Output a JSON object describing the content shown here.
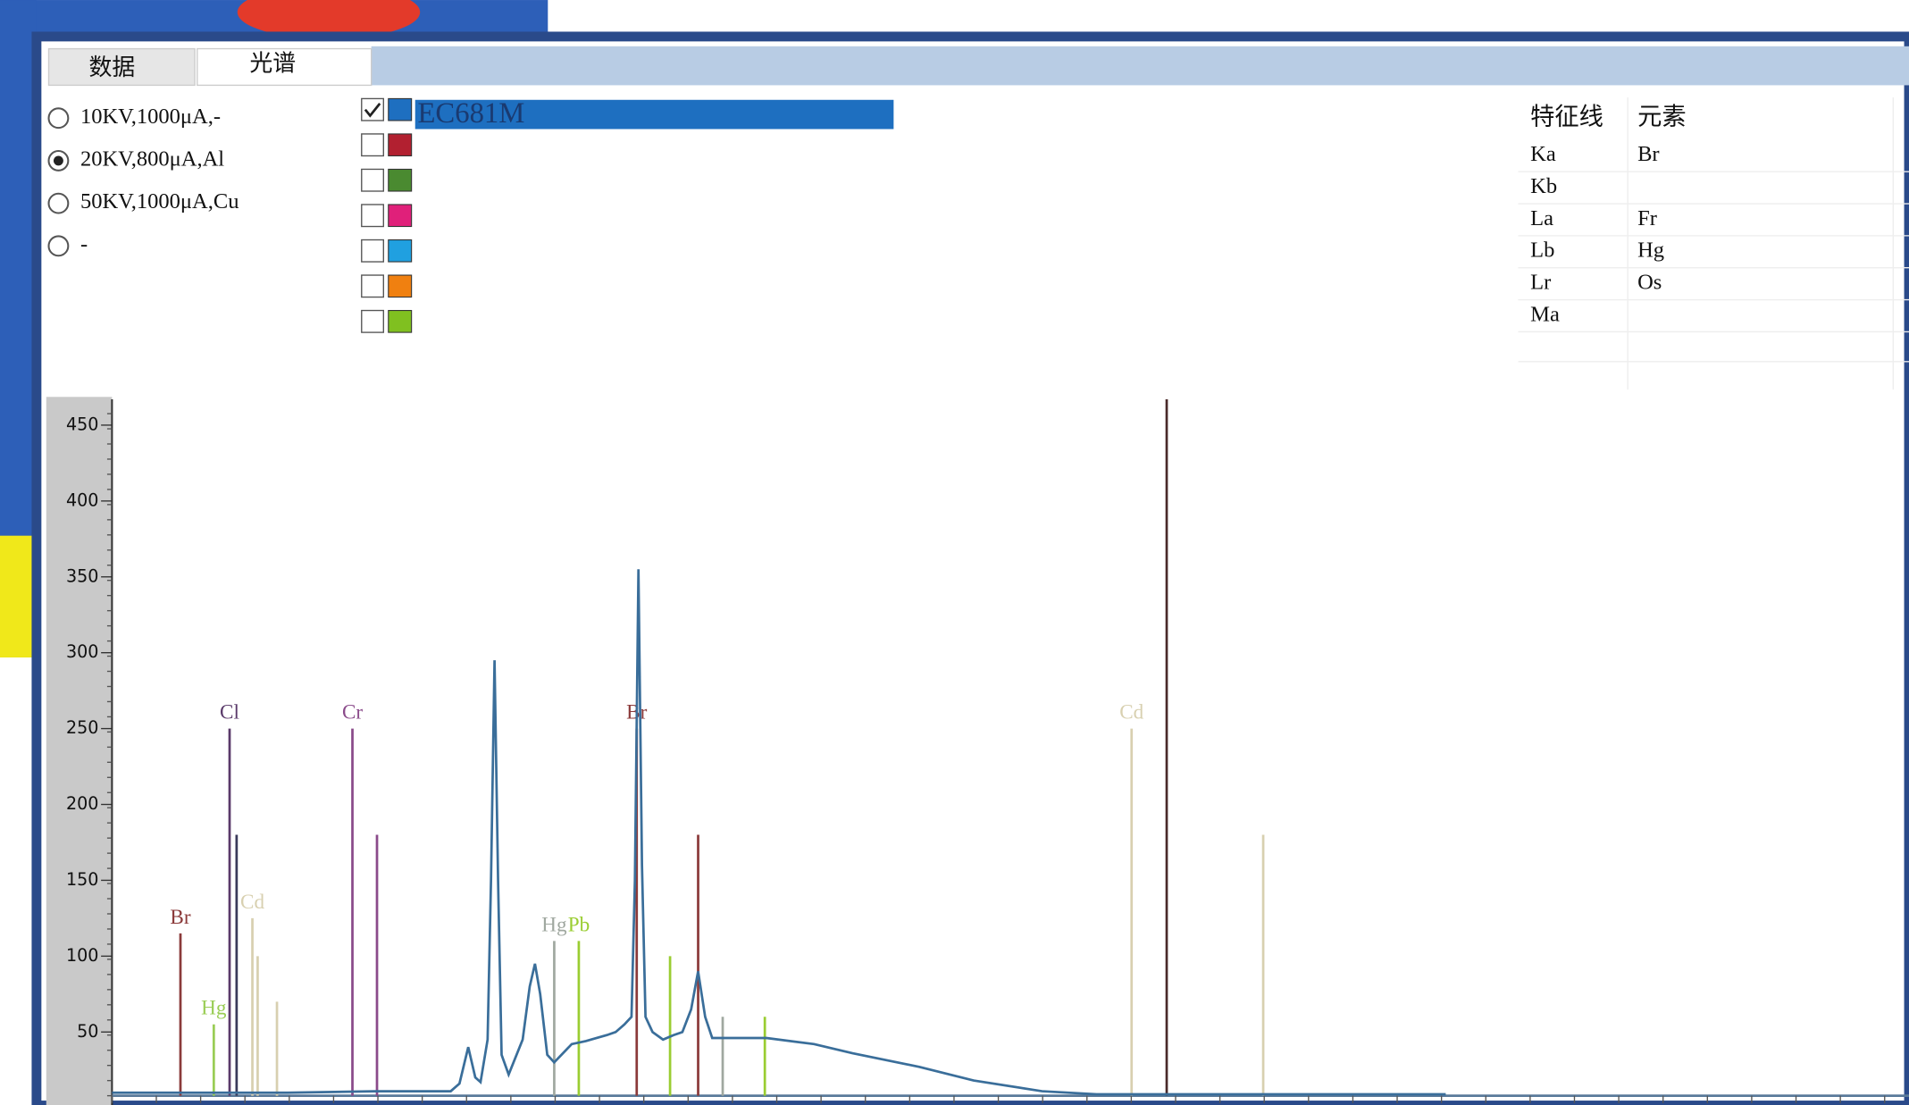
{
  "tabs": [
    "数据",
    "光谱"
  ],
  "active_tab": 1,
  "modes": {
    "options": [
      "10KV,1000μA,-",
      "20KV,800μA,Al",
      "50KV,1000μA,Cu",
      "-"
    ],
    "selected": 1
  },
  "samples": [
    {
      "name": "EC681M",
      "color": "#1e6fc0",
      "checked": true
    },
    {
      "color": "#b22030",
      "checked": false
    },
    {
      "color": "#4a8a30",
      "checked": false
    },
    {
      "color": "#e0207a",
      "checked": false
    },
    {
      "color": "#20a0e0",
      "checked": false
    },
    {
      "color": "#f08010",
      "checked": false
    },
    {
      "color": "#80c020",
      "checked": false
    }
  ],
  "lines_table": {
    "headers": [
      "特征线",
      "元素"
    ],
    "rows": [
      [
        "Ka",
        "Br"
      ],
      [
        "Kb"
      ],
      [
        "La",
        "Fr"
      ],
      [
        "Lb",
        "Hg"
      ],
      [
        "Lr",
        "Os"
      ],
      [
        "Ma"
      ]
    ]
  },
  "chart_data": {
    "type": "line",
    "x": [
      0,
      100,
      150,
      193,
      198,
      203,
      207,
      210,
      214,
      216,
      218,
      220,
      222,
      226,
      234,
      238,
      241,
      244,
      248,
      252,
      262,
      270,
      276,
      282,
      287,
      292,
      296,
      298,
      300,
      302,
      304,
      308,
      314,
      320,
      325,
      330,
      334,
      338,
      342,
      350,
      373,
      400,
      422,
      460,
      491,
      530,
      561,
      600,
      699,
      760
    ],
    "series": [
      {
        "color": "#3a6e9a",
        "values": [
          10,
          10,
          11,
          11,
          16,
          40,
          20,
          17,
          45,
          150,
          295,
          150,
          35,
          22,
          45,
          80,
          95,
          75,
          35,
          30,
          42,
          44,
          46,
          48,
          50,
          55,
          60,
          150,
          355,
          160,
          60,
          50,
          45,
          48,
          50,
          65,
          90,
          60,
          46,
          46,
          46,
          42,
          36,
          27,
          18,
          11,
          9,
          9,
          9,
          9
        ]
      }
    ],
    "markers": [
      {
        "label": "Br",
        "x": 39,
        "height": 115,
        "color": "#8b3a3a"
      },
      {
        "label": "Hg",
        "x": 58,
        "height": 55,
        "color": "#9acd55"
      },
      {
        "label": "Cl",
        "x": 67,
        "height": 250,
        "color": "#5a3a6a"
      },
      {
        "x": 71,
        "height": 180,
        "color": "#3a3a5a"
      },
      {
        "label": "Cd",
        "x": 80,
        "height": 125,
        "color": "#d8d0b0"
      },
      {
        "x": 83,
        "height": 100,
        "color": "#d8d0b0"
      },
      {
        "x": 94,
        "height": 70,
        "color": "#d8d0b0"
      },
      {
        "label": "Cr",
        "x": 137,
        "height": 250,
        "color": "#8a4a8a"
      },
      {
        "x": 151,
        "height": 180,
        "color": "#8a4a8a"
      },
      {
        "label": "Hg",
        "x": 252,
        "height": 110,
        "color": "#a0a8a0"
      },
      {
        "label": "Pb",
        "x": 266,
        "height": 110,
        "color": "#9acd32"
      },
      {
        "label": "Br",
        "x": 299,
        "height": 250,
        "color": "#8b3a3a"
      },
      {
        "x": 318,
        "height": 100,
        "color": "#9acd32"
      },
      {
        "x": 334,
        "height": 180,
        "color": "#8b3a3a"
      },
      {
        "x": 348,
        "height": 60,
        "color": "#a0a8a0"
      },
      {
        "x": 372,
        "height": 60,
        "color": "#9acd32"
      },
      {
        "label": "Cd",
        "x": 581,
        "height": 250,
        "color": "#d8d0b0"
      },
      {
        "x": 601,
        "height": 467,
        "color": "#4a2a2a"
      },
      {
        "x": 656,
        "height": 180,
        "color": "#d8d0b0"
      }
    ],
    "xlim": [
      0,
      1024
    ],
    "ylim": [
      8,
      467
    ],
    "yticks": [
      50,
      100,
      150,
      200,
      250,
      300,
      350,
      400,
      450
    ]
  }
}
